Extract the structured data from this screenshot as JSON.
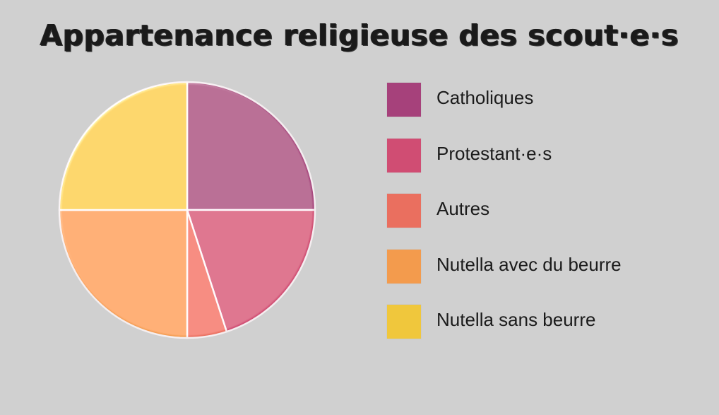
{
  "chart_data": {
    "type": "pie",
    "title": "Appartenance religieuse des scout·e·s",
    "slices": [
      {
        "label": "Catholiques",
        "value": 25,
        "color": "#a6417b"
      },
      {
        "label": "Protestant·e·s",
        "value": 20,
        "color": "#d04d73"
      },
      {
        "label": "Autres",
        "value": 5,
        "color": "#ea6f5f"
      },
      {
        "label": "Nutella avec du beurre",
        "value": 25,
        "color": "#f39b4d"
      },
      {
        "label": "Nutella sans beurre",
        "value": 25,
        "color": "#f0c73c"
      }
    ],
    "start_angle_deg": 0,
    "direction": "clockwise",
    "legend_position": "right"
  }
}
